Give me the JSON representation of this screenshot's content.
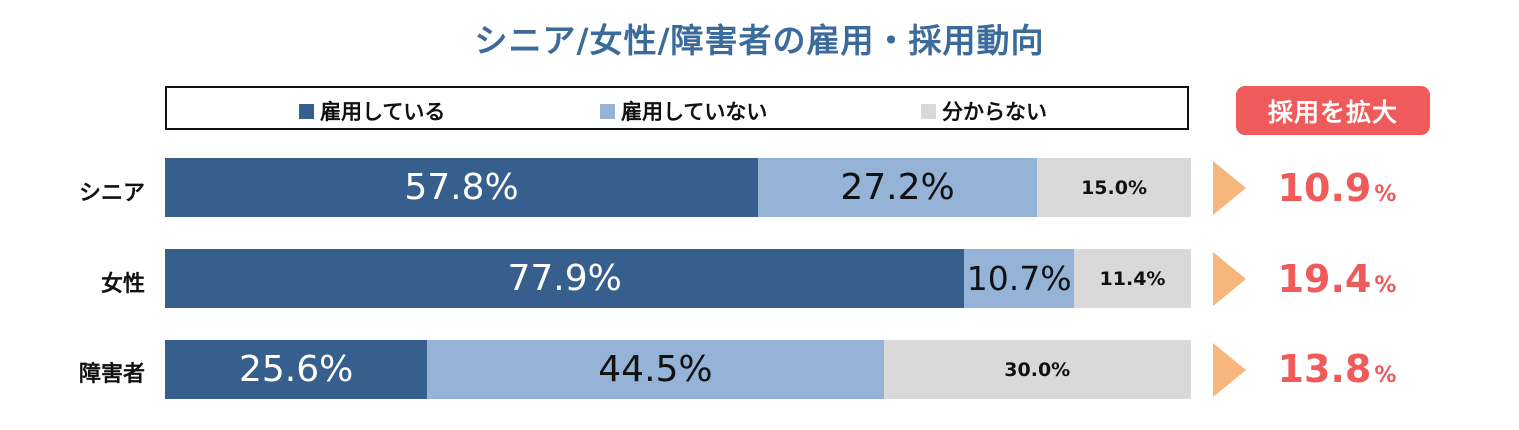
{
  "title": "シニア/女性/障害者の雇用・採用動向",
  "badge": "採用を拡大",
  "colors": {
    "employed": "#365f8e",
    "not_employed": "#95b3d7",
    "unknown": "#d9d9d9",
    "accent": "#ef5b5b",
    "arrow": "#f7b77c",
    "title": "#3b6b9a"
  },
  "legend": [
    {
      "label": "雇用している"
    },
    {
      "label": "雇用していない"
    },
    {
      "label": "分からない"
    }
  ],
  "rows": [
    {
      "label": "シニア",
      "segments": [
        {
          "text": "57.8%"
        },
        {
          "text": "27.2%"
        },
        {
          "text": "15.0%"
        }
      ],
      "expand_num": "10.9",
      "expand_unit": "%"
    },
    {
      "label": "女性",
      "segments": [
        {
          "text": "77.9%"
        },
        {
          "text": "10.7%"
        },
        {
          "text": "11.4%"
        }
      ],
      "expand_num": "19.4",
      "expand_unit": "%"
    },
    {
      "label": "障害者",
      "segments": [
        {
          "text": "25.6%"
        },
        {
          "text": "44.5%"
        },
        {
          "text": "30.0%"
        }
      ],
      "expand_num": "13.8",
      "expand_unit": "%"
    }
  ],
  "chart_data": {
    "type": "bar",
    "orientation": "horizontal",
    "stacked": true,
    "title": "シニア/女性/障害者の雇用・採用動向",
    "categories": [
      "シニア",
      "女性",
      "障害者"
    ],
    "series": [
      {
        "name": "雇用している",
        "values": [
          57.8,
          77.9,
          25.6
        ]
      },
      {
        "name": "雇用していない",
        "values": [
          27.2,
          10.7,
          44.5
        ]
      },
      {
        "name": "分からない",
        "values": [
          15.0,
          11.4,
          30.0
        ]
      }
    ],
    "annotation_label": "採用を拡大",
    "annotation_values": [
      10.9,
      19.4,
      13.8
    ],
    "xlim": [
      0,
      100
    ],
    "legend_position": "top",
    "grid": false
  }
}
